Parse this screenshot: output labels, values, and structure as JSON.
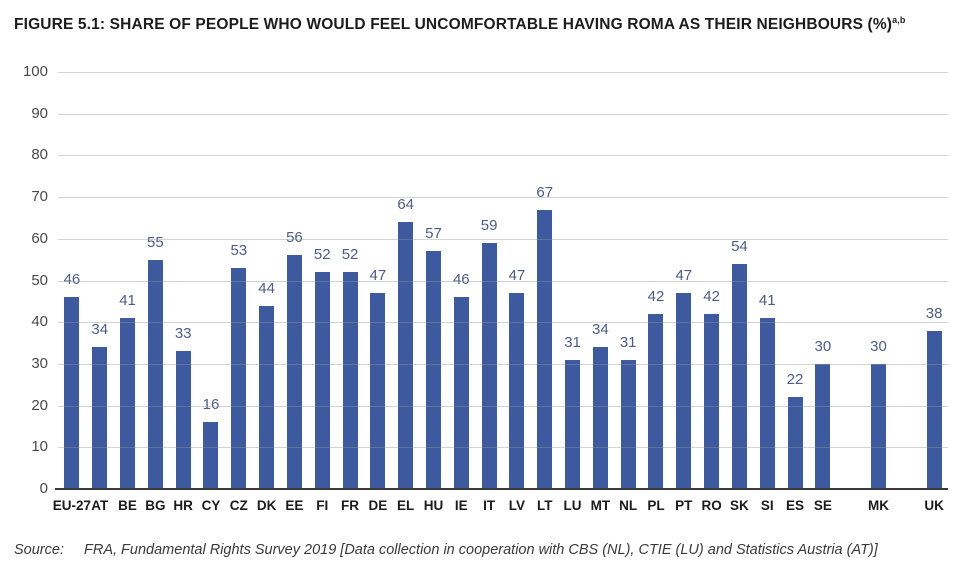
{
  "title": {
    "text": "FIGURE 5.1: SHARE OF PEOPLE WHO WOULD FEEL UNCOMFORTABLE HAVING ROMA AS THEIR NEIGHBOURS (%)",
    "superscript": "a,b"
  },
  "source": {
    "label": "Source:",
    "text": "FRA, Fundamental Rights Survey 2019 [Data collection in cooperation with CBS (NL), CTIE (LU) and Statistics Austria (AT)]"
  },
  "chart_data": {
    "type": "bar",
    "title": "FIGURE 5.1: SHARE OF PEOPLE WHO WOULD FEEL UNCOMFORTABLE HAVING ROMA AS THEIR NEIGHBOURS (%)",
    "categories": [
      "EU-27",
      "AT",
      "BE",
      "BG",
      "HR",
      "CY",
      "CZ",
      "DK",
      "EE",
      "FI",
      "FR",
      "DE",
      "EL",
      "HU",
      "IE",
      "IT",
      "LV",
      "LT",
      "LU",
      "MT",
      "NL",
      "PL",
      "PT",
      "RO",
      "SK",
      "SI",
      "ES",
      "SE",
      "MK",
      "UK"
    ],
    "values": [
      46,
      34,
      41,
      55,
      33,
      16,
      53,
      44,
      56,
      52,
      52,
      47,
      64,
      57,
      46,
      59,
      47,
      67,
      31,
      34,
      31,
      42,
      47,
      42,
      54,
      41,
      22,
      30,
      30,
      38
    ],
    "separator_gaps_before": [
      "MK",
      "UK"
    ],
    "xlabel": "",
    "ylabel": "",
    "ylim": [
      0,
      100
    ],
    "yticks": [
      0,
      10,
      20,
      30,
      40,
      50,
      60,
      70,
      80,
      90,
      100
    ],
    "grid": true,
    "legend": "none",
    "value_labels": "above bars",
    "bar_color": "#3D5A9E",
    "value_label_color": "#4C5C87",
    "axis_tick_color": "#4A4A4A",
    "category_label_color": "#1B1B1B",
    "gridline_color": "#CFCFCF",
    "baseline_color": "#3B3B3B"
  }
}
